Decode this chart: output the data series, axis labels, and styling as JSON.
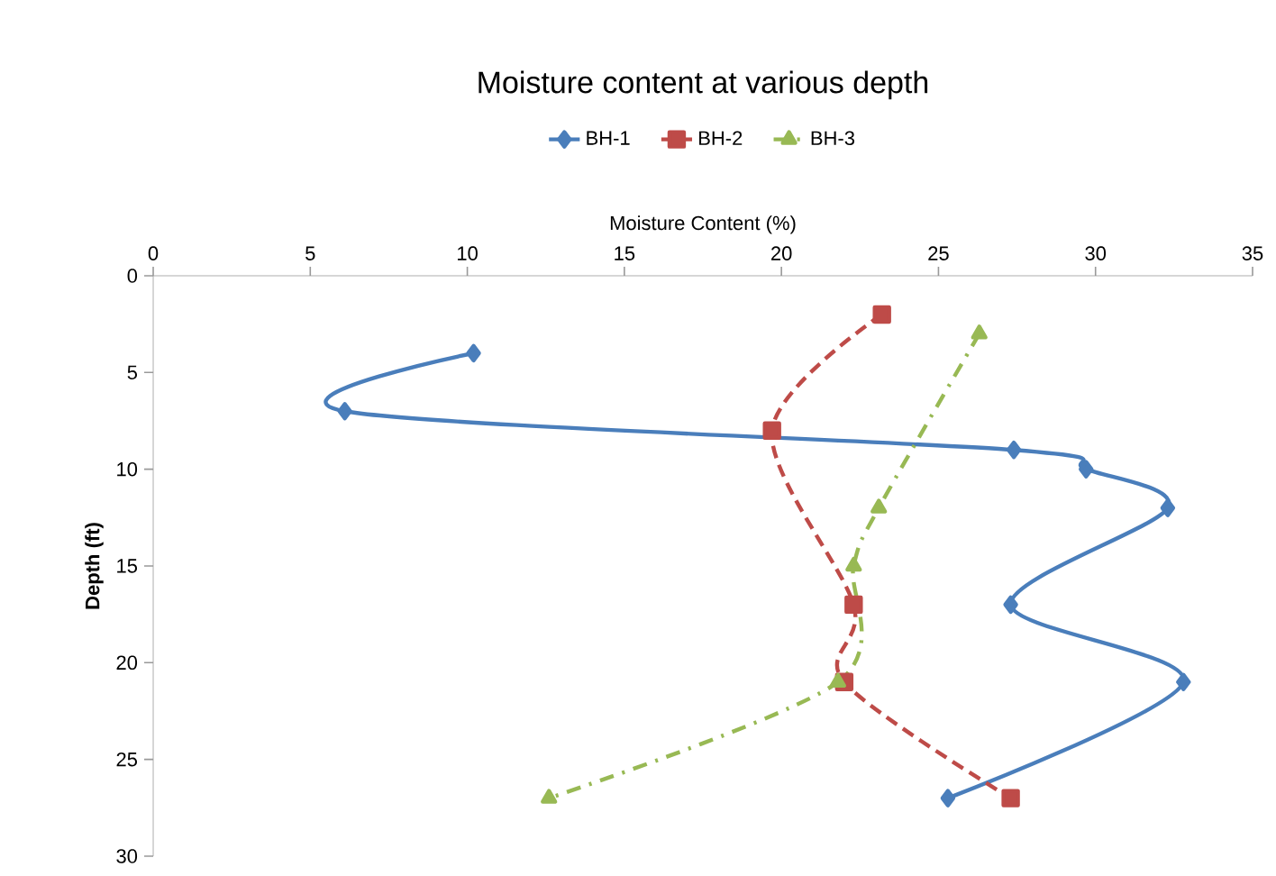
{
  "chart_data": {
    "type": "line",
    "title": "Moisture content at various depth",
    "xlabel": "Moisture Content (%)",
    "ylabel": "Depth (ft)",
    "xlim": [
      0,
      35
    ],
    "xticks": [
      0,
      5,
      10,
      15,
      20,
      25,
      30,
      35
    ],
    "ylim": [
      30,
      0
    ],
    "yticks": [
      0,
      5,
      10,
      15,
      20,
      25,
      30
    ],
    "grid": false,
    "legend": "top",
    "series": [
      {
        "name": "BH-1",
        "color": "#4a7ebb",
        "marker": "diamond",
        "line_style": "solid",
        "x": [
          10.2,
          6.1,
          27.4,
          29.7,
          32.3,
          27.3,
          32.8,
          25.3
        ],
        "values": [
          4,
          7,
          9,
          10,
          12,
          17,
          21,
          27
        ]
      },
      {
        "name": "BH-2",
        "color": "#be4b48",
        "marker": "square",
        "line_style": "dashed",
        "x": [
          23.2,
          19.7,
          22.3,
          22.0,
          27.3
        ],
        "values": [
          2,
          8,
          17,
          21,
          27
        ]
      },
      {
        "name": "BH-3",
        "color": "#98b954",
        "marker": "triangle",
        "line_style": "dashdot",
        "x": [
          26.3,
          23.1,
          22.3,
          21.8,
          12.6
        ],
        "values": [
          3,
          12,
          15,
          21,
          27
        ]
      }
    ]
  }
}
